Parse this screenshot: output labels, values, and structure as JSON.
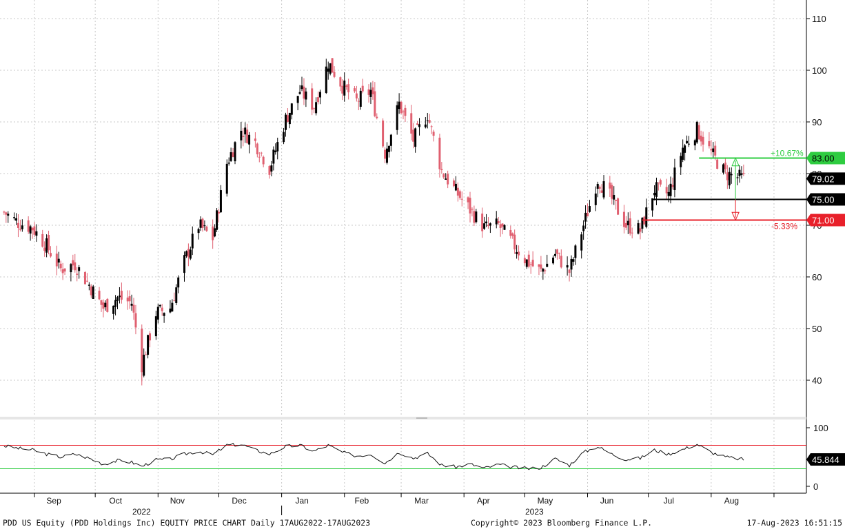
{
  "footer": {
    "left": "PDD US Equity (PDD Holdings Inc) EQUITY PRICE CHART  Daily 17AUG2022-17AUG2023",
    "center": "Copyright© 2023 Bloomberg Finance L.P.",
    "right": "17-Aug-2023 16:51:15"
  },
  "colors": {
    "up": "#000000",
    "down": "#e06070",
    "grid": "#c8c8c8",
    "green": "#2ecc40",
    "red": "#e8202a",
    "line": "#111111"
  },
  "chart_data": [
    {
      "type": "candlestick",
      "title": "",
      "ylim": [
        33,
        113
      ],
      "yticks": [
        40,
        50,
        60,
        70,
        80,
        90,
        100,
        110
      ],
      "ytick_labels": [
        "40",
        "50",
        "60",
        "70",
        "80",
        "90",
        "100",
        "110"
      ],
      "xlabels": [
        "Sep",
        "Oct",
        "Nov",
        "Dec",
        "Jan",
        "Feb",
        "Mar",
        "Apr",
        "May",
        "Jun",
        "Jul",
        "Aug"
      ],
      "year_labels": [
        "2022",
        "2023"
      ],
      "grid": true,
      "close_path": [
        [
          "2022-08-17",
          72.5
        ],
        [
          "2022-08-24",
          70.5
        ],
        [
          "2022-08-31",
          69.5
        ],
        [
          "2022-09-07",
          66.0
        ],
        [
          "2022-09-14",
          61.5
        ],
        [
          "2022-09-21",
          62.5
        ],
        [
          "2022-09-28",
          58.5
        ],
        [
          "2022-10-05",
          54.0
        ],
        [
          "2022-10-12",
          56.0
        ],
        [
          "2022-10-19",
          55.0
        ],
        [
          "2022-10-24",
          43.0
        ],
        [
          "2022-10-31",
          53.0
        ],
        [
          "2022-11-07",
          54.0
        ],
        [
          "2022-11-14",
          63.0
        ],
        [
          "2022-11-21",
          70.0
        ],
        [
          "2022-11-28",
          67.5
        ],
        [
          "2022-12-05",
          82.0
        ],
        [
          "2022-12-12",
          88.5
        ],
        [
          "2022-12-19",
          86.0
        ],
        [
          "2022-12-26",
          81.0
        ],
        [
          "2023-01-03",
          90.5
        ],
        [
          "2023-01-10",
          96.0
        ],
        [
          "2023-01-17",
          93.0
        ],
        [
          "2023-01-24",
          101.5
        ],
        [
          "2023-01-31",
          97.0
        ],
        [
          "2023-02-07",
          94.0
        ],
        [
          "2023-02-14",
          96.0
        ],
        [
          "2023-02-21",
          84.0
        ],
        [
          "2023-02-28",
          93.5
        ],
        [
          "2023-03-07",
          86.5
        ],
        [
          "2023-03-14",
          91.5
        ],
        [
          "2023-03-21",
          80.5
        ],
        [
          "2023-03-28",
          76.5
        ],
        [
          "2023-04-04",
          73.0
        ],
        [
          "2023-04-11",
          69.5
        ],
        [
          "2023-04-18",
          70.0
        ],
        [
          "2023-04-25",
          66.5
        ],
        [
          "2023-05-02",
          63.0
        ],
        [
          "2023-05-09",
          61.0
        ],
        [
          "2023-05-16",
          64.5
        ],
        [
          "2023-05-23",
          61.0
        ],
        [
          "2023-05-30",
          70.0
        ],
        [
          "2023-06-06",
          79.0
        ],
        [
          "2023-06-13",
          75.0
        ],
        [
          "2023-06-20",
          70.0
        ],
        [
          "2023-06-27",
          69.0
        ],
        [
          "2023-07-04",
          77.0
        ],
        [
          "2023-07-11",
          76.0
        ],
        [
          "2023-07-18",
          85.0
        ],
        [
          "2023-07-25",
          88.5
        ],
        [
          "2023-08-01",
          84.0
        ],
        [
          "2023-08-08",
          80.0
        ],
        [
          "2023-08-17",
          79.0
        ]
      ],
      "last_price": "79.02",
      "levels": [
        {
          "value": 83.0,
          "label": "83.00",
          "color": "green"
        },
        {
          "value": 75.0,
          "label": "75.00",
          "color": "black"
        },
        {
          "value": 71.0,
          "label": "71.00",
          "color": "red"
        }
      ],
      "annotations": [
        {
          "text": "+10.67%",
          "color": "green"
        },
        {
          "text": "-5.33%",
          "color": "red"
        }
      ]
    },
    {
      "type": "line",
      "title": "",
      "ylim": [
        0,
        100
      ],
      "yticks": [
        0,
        100
      ],
      "ytick_labels": [
        "0",
        "100"
      ],
      "bands": [
        {
          "value": 70,
          "color": "red"
        },
        {
          "value": 30,
          "color": "green"
        }
      ],
      "series": [
        {
          "values": [
            [
              "2022-08-17",
              69
            ],
            [
              "2022-08-24",
              65
            ],
            [
              "2022-08-31",
              62
            ],
            [
              "2022-09-07",
              55
            ],
            [
              "2022-09-14",
              50
            ],
            [
              "2022-09-21",
              55
            ],
            [
              "2022-09-28",
              48
            ],
            [
              "2022-10-05",
              38
            ],
            [
              "2022-10-12",
              44
            ],
            [
              "2022-10-19",
              41
            ],
            [
              "2022-10-24",
              34
            ],
            [
              "2022-10-31",
              45
            ],
            [
              "2022-11-07",
              46
            ],
            [
              "2022-11-14",
              55
            ],
            [
              "2022-11-21",
              60
            ],
            [
              "2022-11-28",
              54
            ],
            [
              "2022-12-05",
              70
            ],
            [
              "2022-12-12",
              72
            ],
            [
              "2022-12-19",
              62
            ],
            [
              "2022-12-26",
              55
            ],
            [
              "2023-01-03",
              68
            ],
            [
              "2023-01-10",
              70
            ],
            [
              "2023-01-17",
              60
            ],
            [
              "2023-01-24",
              70
            ],
            [
              "2023-01-31",
              58
            ],
            [
              "2023-02-07",
              52
            ],
            [
              "2023-02-14",
              55
            ],
            [
              "2023-02-21",
              40
            ],
            [
              "2023-02-28",
              58
            ],
            [
              "2023-03-07",
              48
            ],
            [
              "2023-03-14",
              56
            ],
            [
              "2023-03-21",
              36
            ],
            [
              "2023-03-28",
              33
            ],
            [
              "2023-04-04",
              38
            ],
            [
              "2023-04-11",
              31
            ],
            [
              "2023-04-18",
              37
            ],
            [
              "2023-04-25",
              33
            ],
            [
              "2023-05-02",
              30
            ],
            [
              "2023-05-09",
              32
            ],
            [
              "2023-05-16",
              47
            ],
            [
              "2023-05-23",
              36
            ],
            [
              "2023-05-30",
              58
            ],
            [
              "2023-06-06",
              68
            ],
            [
              "2023-06-13",
              55
            ],
            [
              "2023-06-20",
              46
            ],
            [
              "2023-06-27",
              48
            ],
            [
              "2023-07-04",
              62
            ],
            [
              "2023-07-11",
              55
            ],
            [
              "2023-07-18",
              63
            ],
            [
              "2023-07-25",
              72
            ],
            [
              "2023-08-01",
              58
            ],
            [
              "2023-08-08",
              50
            ],
            [
              "2023-08-17",
              45.8
            ]
          ]
        }
      ],
      "last_value": "45.844"
    }
  ]
}
